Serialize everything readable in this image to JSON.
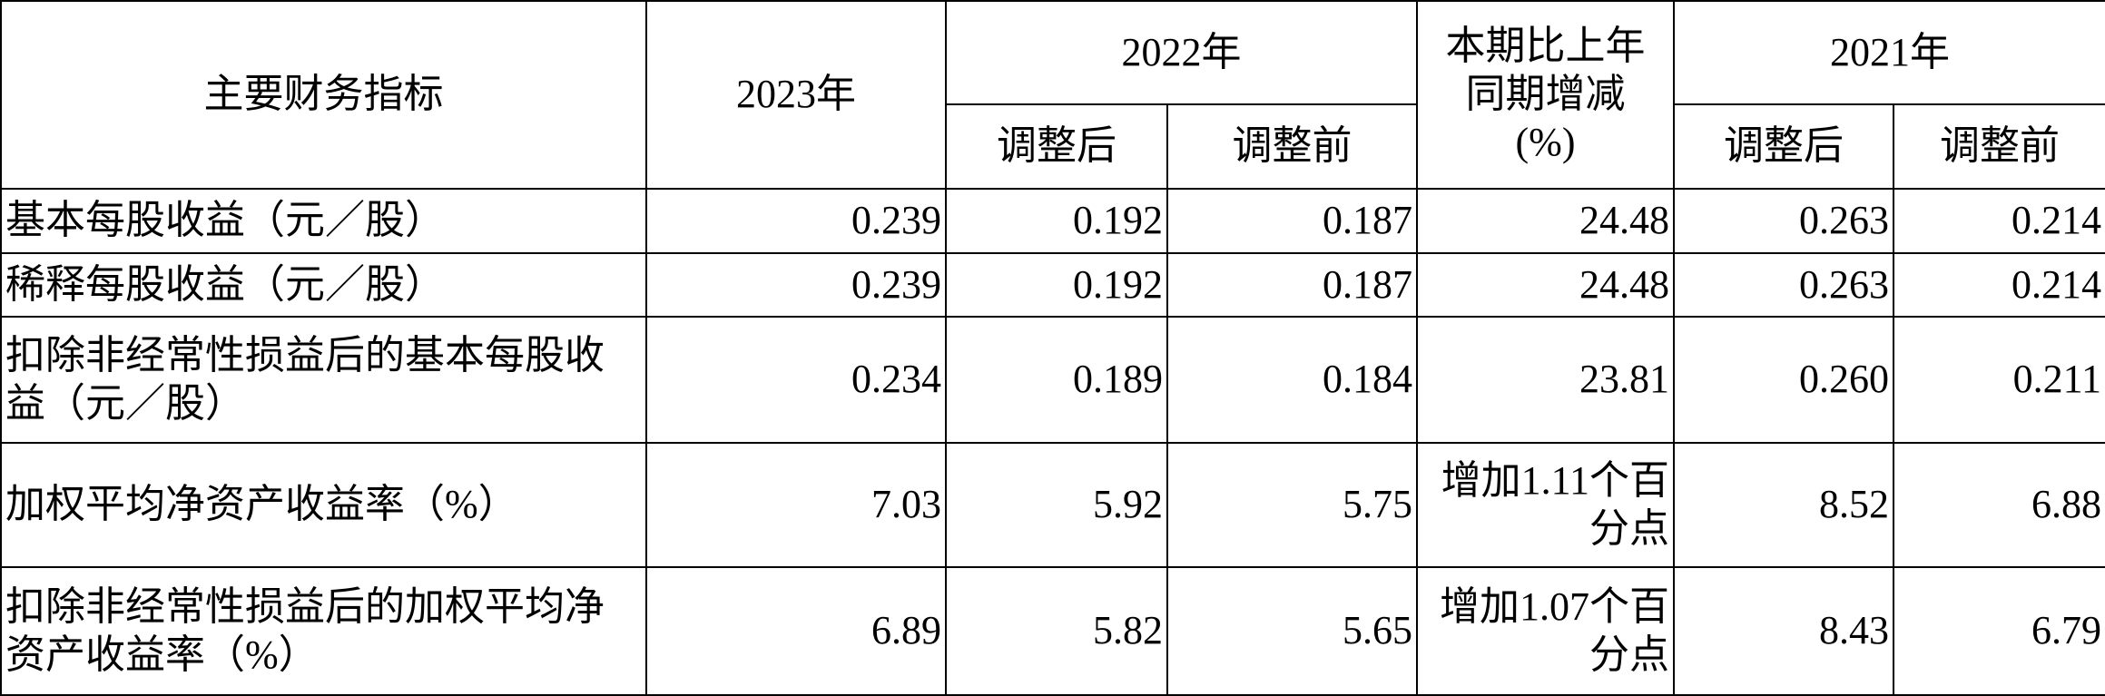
{
  "table": {
    "header": {
      "indicator": "主要财务指标",
      "y2023": "2023年",
      "y2022": "2022年",
      "change": "本期比上年同期增减(%)",
      "y2021": "2021年",
      "adjusted_2022": "调整后",
      "before_2022": "调整前",
      "adjusted_2021": "调整后",
      "before_2021": "调整前"
    },
    "rows": [
      [
        "基本每股收益（元／股）",
        "0.239",
        "0.192",
        "0.187",
        "24.48",
        "0.263",
        "0.214"
      ],
      [
        "稀释每股收益（元／股）",
        "0.239",
        "0.192",
        "0.187",
        "24.48",
        "0.263",
        "0.214"
      ],
      [
        "扣除非经常性损益后的基本每股收益（元／股）",
        "0.234",
        "0.189",
        "0.184",
        "23.81",
        "0.260",
        "0.211"
      ],
      [
        "加权平均净资产收益率（%）",
        "7.03",
        "5.92",
        "5.75",
        "增加1.11个百分点",
        "8.52",
        "6.88"
      ],
      [
        "扣除非经常性损益后的加权平均净资产收益率（%）",
        "6.89",
        "5.82",
        "5.65",
        "增加1.07个百分点",
        "8.43",
        "6.79"
      ]
    ]
  }
}
